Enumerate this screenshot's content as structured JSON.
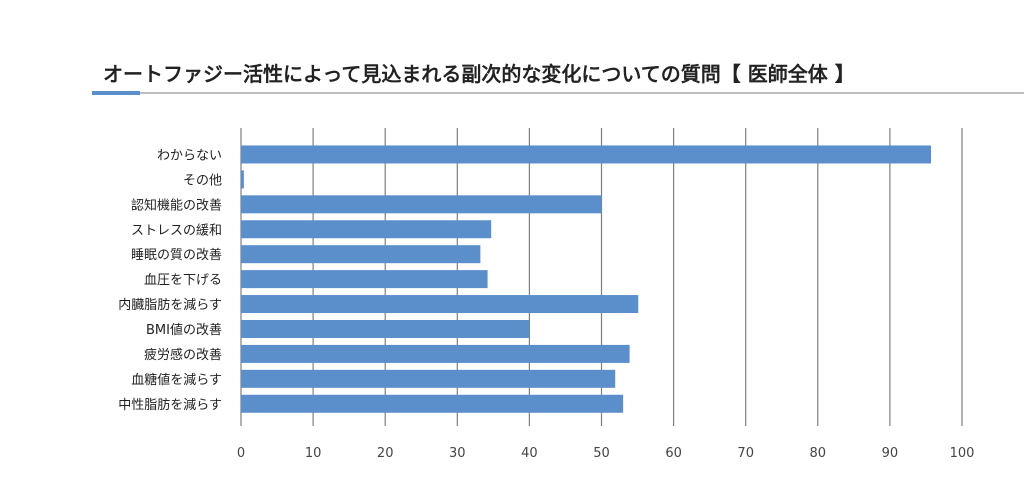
{
  "title": "オートファジー活性によって見込まれる副次的な変化についての質問【 医師全体 】",
  "colors": {
    "bar": "#5b8fcc",
    "grid": "#7f7f7f",
    "title_accent": "#5b8fcc",
    "title_rule": "#bdbdbd"
  },
  "chart_data": {
    "type": "bar",
    "orientation": "horizontal",
    "title": "オートファジー活性によって見込まれる副次的な変化についての質問【 医師全体 】",
    "categories": [
      "わからない",
      "その他",
      "認知機能の改善",
      "ストレスの緩和",
      "睡眠の質の改善",
      "血圧を下げる",
      "内臓脂肪を減らす",
      "BMI値の改善",
      "疲労感の改善",
      "血糖値を減らす",
      "中性脂肪を減らす"
    ],
    "values": [
      95.7,
      0.4,
      50.0,
      34.7,
      33.2,
      34.2,
      55.1,
      40.0,
      53.9,
      51.9,
      53.0
    ],
    "xlim": [
      0,
      100
    ],
    "xticks": [
      "0",
      "10",
      "20",
      "30",
      "40",
      "50",
      "60",
      "70",
      "80",
      "90",
      "100"
    ],
    "xlabel": "",
    "ylabel": "",
    "grid": "vertical"
  }
}
